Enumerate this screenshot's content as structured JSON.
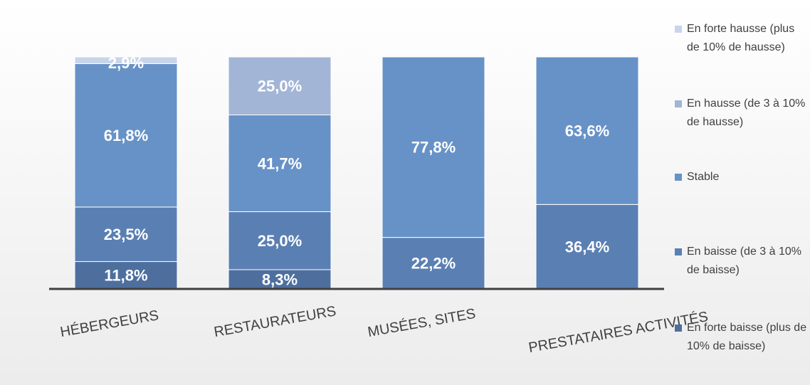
{
  "chart_data": {
    "type": "stacked_bar",
    "categories": [
      "HÉBERGEURS",
      "RESTAURATEURS",
      "MUSÉES, SITES",
      "PRESTATAIRES ACTIVITÉS"
    ],
    "series": [
      {
        "name": "En forte baisse (plus de 10% de baisse)",
        "color": "#4e6f9e",
        "values": [
          11.8,
          8.3,
          null,
          null
        ],
        "value_labels": [
          "11,8%",
          "8,3%",
          null,
          null
        ]
      },
      {
        "name": "En baisse (de 3 à 10% de baisse)",
        "color": "#5a7fb3",
        "values": [
          23.5,
          25.0,
          22.2,
          36.4
        ],
        "value_labels": [
          "23,5%",
          "25,0%",
          "22,2%",
          "36,4%"
        ]
      },
      {
        "name": "Stable",
        "color": "#6792c7",
        "values": [
          61.8,
          41.7,
          77.8,
          63.6
        ],
        "value_labels": [
          "61,8%",
          "41,7%",
          "77,8%",
          "63,6%"
        ]
      },
      {
        "name": "En hausse (de 3 à 10% de hausse)",
        "color": "#a2b5d6",
        "values": [
          null,
          25.0,
          null,
          null
        ],
        "value_labels": [
          null,
          "25,0%",
          null,
          null
        ]
      },
      {
        "name": "En forte hausse (plus de 10% de hausse)",
        "color": "#c8d4ea",
        "values": [
          2.9,
          null,
          null,
          null
        ],
        "value_labels": [
          "2,9%",
          null,
          null,
          null
        ]
      }
    ],
    "legend": "right"
  }
}
